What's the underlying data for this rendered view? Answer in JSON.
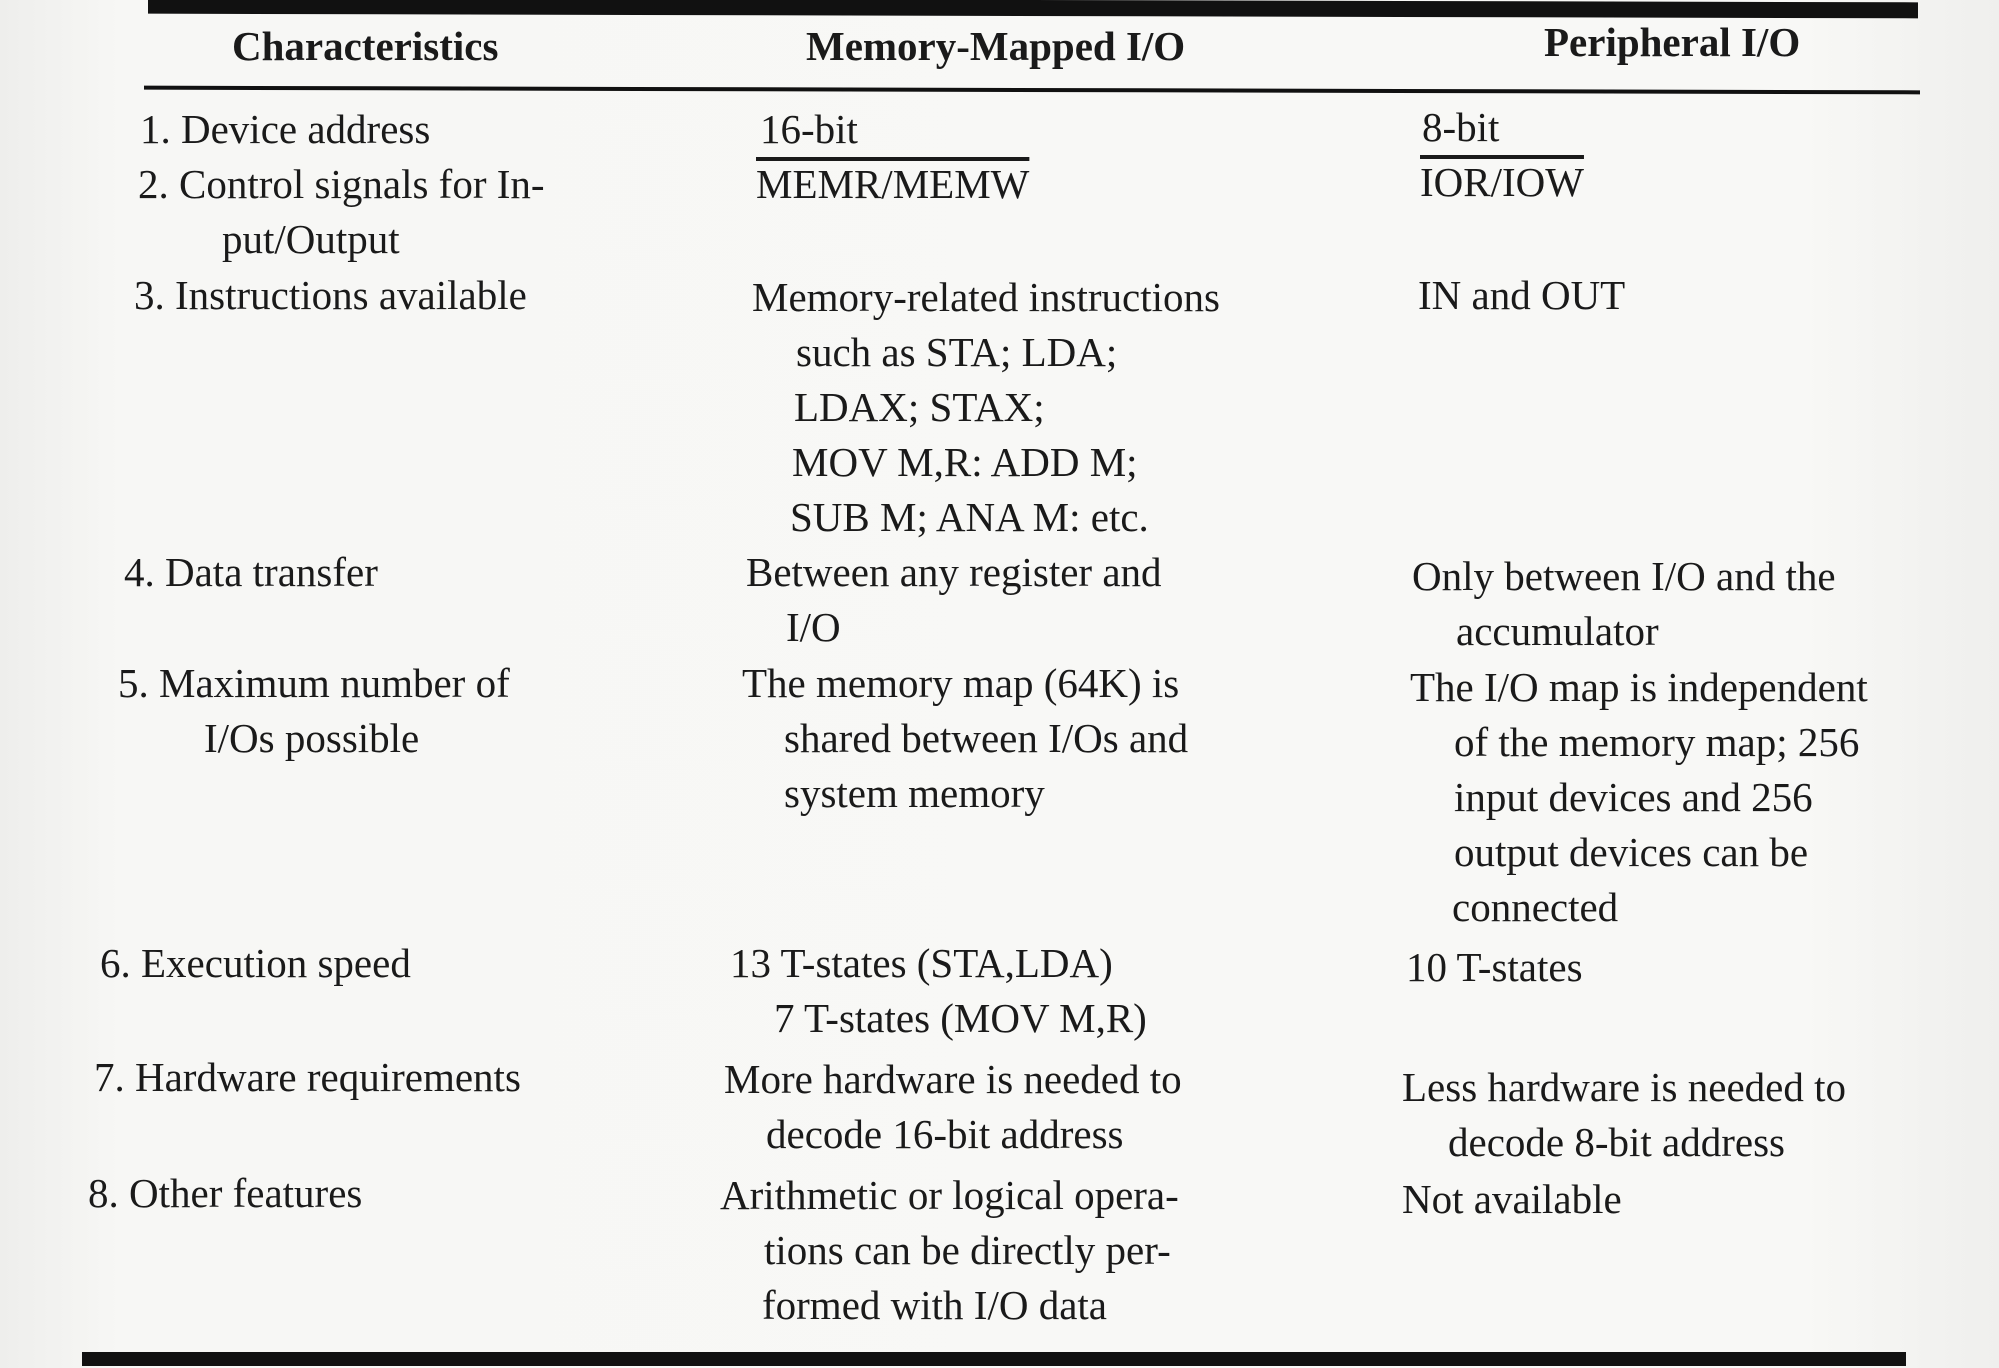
{
  "table": {
    "headers": [
      "Characteristics",
      "Memory-Mapped I/O",
      "Peripheral I/O"
    ],
    "rows": [
      {
        "characteristic": [
          "1. Device address"
        ],
        "memory_mapped": [
          "16-bit"
        ],
        "peripheral": [
          "8-bit"
        ]
      },
      {
        "characteristic": [
          "2. Control signals for In-",
          "put/Output"
        ],
        "memory_mapped": [
          "MEMR/MEMW"
        ],
        "peripheral": [
          "IOR/IOW"
        ]
      },
      {
        "characteristic": [
          "3. Instructions available"
        ],
        "memory_mapped": [
          "Memory-related instructions",
          "such as STA; LDA;",
          "LDAX; STAX;",
          "MOV M,R: ADD M;",
          "SUB M; ANA M: etc."
        ],
        "peripheral": [
          "IN and OUT"
        ]
      },
      {
        "characteristic": [
          "4. Data transfer"
        ],
        "memory_mapped": [
          "Between any register and",
          "I/O"
        ],
        "peripheral": [
          "Only between I/O and the",
          "accumulator"
        ]
      },
      {
        "characteristic": [
          "5. Maximum number of",
          "I/Os possible"
        ],
        "memory_mapped": [
          "The memory map (64K) is",
          "shared between I/Os and",
          "system memory"
        ],
        "peripheral": [
          "The I/O map is independent",
          "of the memory map; 256",
          "input devices and 256",
          "output devices can be",
          "connected"
        ]
      },
      {
        "characteristic": [
          "6. Execution speed"
        ],
        "memory_mapped": [
          "13 T-states (STA,LDA)",
          "7 T-states (MOV M,R)"
        ],
        "peripheral": [
          "10 T-states"
        ]
      },
      {
        "characteristic": [
          "7. Hardware requirements"
        ],
        "memory_mapped": [
          "More hardware is needed to",
          "decode 16-bit address"
        ],
        "peripheral": [
          "Less hardware is needed to",
          "decode 8-bit address"
        ]
      },
      {
        "characteristic": [
          "8. Other features"
        ],
        "memory_mapped": [
          "Arithmetic or logical opera-",
          "tions can be directly per-",
          "formed with I/O data"
        ],
        "peripheral": [
          "Not available"
        ]
      }
    ]
  }
}
